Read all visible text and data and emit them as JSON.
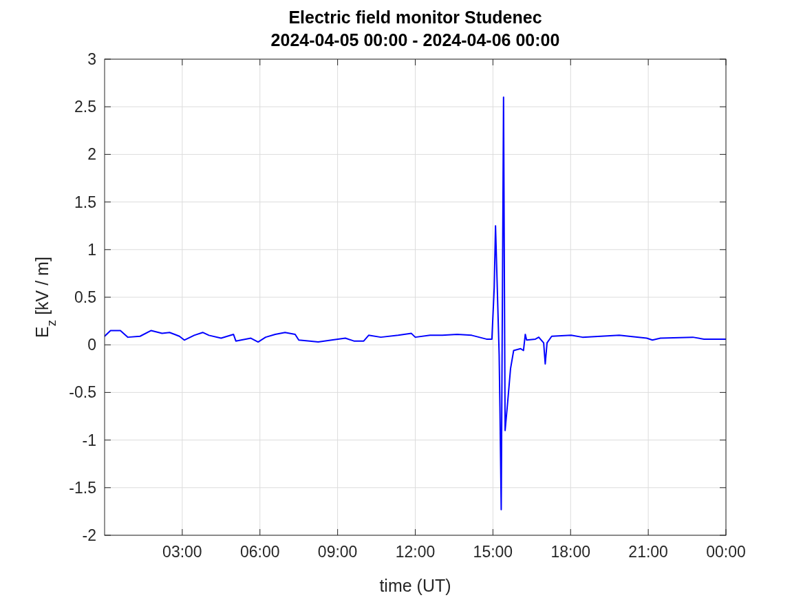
{
  "chart_data": {
    "type": "line",
    "title": "Electric field monitor Studenec\n2024-04-05 00:00 - 2024-04-06 00:00",
    "xlabel": "time (UT)",
    "ylabel": "E$_{z}$ [kV / m]",
    "xlim": [
      0,
      24
    ],
    "ylim": [
      -2,
      3
    ],
    "xticks": [
      {
        "value": 3,
        "label": "03:00"
      },
      {
        "value": 6,
        "label": "06:00"
      },
      {
        "value": 9,
        "label": "09:00"
      },
      {
        "value": 12,
        "label": "12:00"
      },
      {
        "value": 15,
        "label": "15:00"
      },
      {
        "value": 18,
        "label": "18:00"
      },
      {
        "value": 21,
        "label": "21:00"
      },
      {
        "value": 24,
        "label": "00:00"
      }
    ],
    "yticks": [
      -2,
      -1.5,
      -1,
      -0.5,
      0,
      0.5,
      1,
      1.5,
      2,
      2.5,
      3
    ],
    "grid": true,
    "line_style": "solid",
    "x": [
      0,
      0.23,
      0.61,
      0.9,
      1.37,
      1.8,
      2.22,
      2.51,
      2.89,
      3.08,
      3.46,
      3.79,
      4.03,
      4.5,
      4.98,
      5.07,
      5.65,
      5.93,
      6.22,
      6.59,
      6.97,
      7.36,
      7.5,
      7.92,
      8.25,
      8.77,
      9.3,
      9.63,
      10.01,
      10.2,
      10.67,
      11.34,
      11.85,
      12,
      12.57,
      13.05,
      13.62,
      14.18,
      14.75,
      14.96,
      15.05,
      15.1,
      15.24,
      15.27,
      15.32,
      15.41,
      15.47,
      15.57,
      15.68,
      15.8,
      16.07,
      16.18,
      16.25,
      16.3,
      16.64,
      16.77,
      16.96,
      17.02,
      17.09,
      17.27,
      18.02,
      18.46,
      19.88,
      20.94,
      21.16,
      21.47,
      22.72,
      23.15,
      24
    ],
    "series": [
      {
        "color": "#0000ff",
        "values": [
          0.09,
          0.15,
          0.15,
          0.08,
          0.09,
          0.15,
          0.12,
          0.13,
          0.09,
          0.05,
          0.1,
          0.13,
          0.1,
          0.07,
          0.11,
          0.04,
          0.07,
          0.03,
          0.08,
          0.11,
          0.13,
          0.11,
          0.05,
          0.04,
          0.03,
          0.05,
          0.07,
          0.04,
          0.04,
          0.1,
          0.08,
          0.1,
          0.12,
          0.08,
          0.1,
          0.1,
          0.11,
          0.1,
          0.06,
          0.06,
          0.6,
          1.25,
          -0.1,
          -0.65,
          -1.73,
          2.6,
          -0.9,
          -0.6,
          -0.25,
          -0.06,
          -0.04,
          -0.06,
          0.11,
          0.05,
          0.06,
          0.08,
          0.02,
          -0.2,
          0.02,
          0.09,
          0.1,
          0.08,
          0.1,
          0.07,
          0.05,
          0.07,
          0.08,
          0.06,
          0.06
        ]
      }
    ]
  }
}
